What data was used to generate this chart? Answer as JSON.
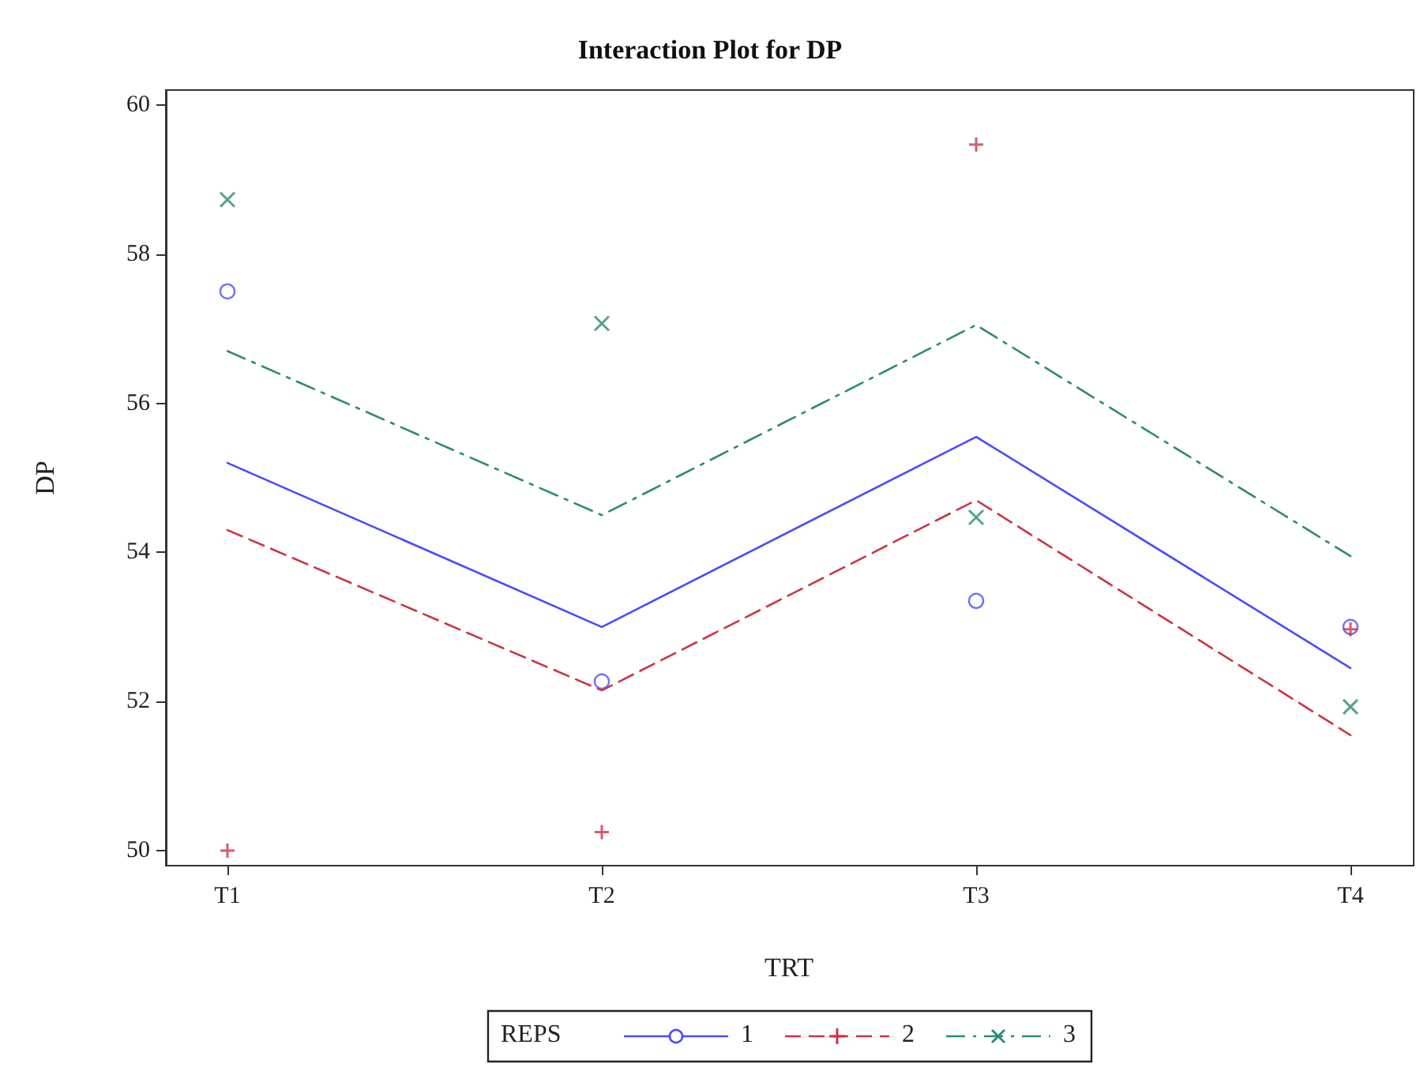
{
  "chart_data": {
    "type": "scatter",
    "title": "Interaction Plot for DP",
    "xlabel": "TRT",
    "ylabel": "DP",
    "legend_title": "REPS",
    "legend": "bottom",
    "grid": false,
    "categories": [
      "T1",
      "T2",
      "T3",
      "T4"
    ],
    "ylim": [
      49.8,
      60.2
    ],
    "yticks": [
      50,
      52,
      54,
      56,
      58,
      60
    ],
    "series": [
      {
        "name": "1",
        "color": "#4b4bff",
        "marker": "circle",
        "line_style": "solid",
        "values": [
          57.5,
          52.27,
          53.35,
          53.0
        ]
      },
      {
        "name": "2",
        "color": "#cc3344",
        "marker": "cross",
        "line_style": "dashed",
        "values": [
          50.0,
          50.25,
          59.47,
          52.97
        ]
      },
      {
        "name": "3",
        "color": "#2a8a78",
        "marker": "x",
        "line_style": "dashdot",
        "values": [
          58.73,
          57.07,
          54.47,
          51.93
        ]
      },
      {
        "type": "line",
        "color": "#4b4bff",
        "line_style": "solid",
        "marker": "none",
        "values": [
          55.2,
          53.0,
          55.55,
          52.45
        ]
      },
      {
        "type": "line",
        "color": "#cc3344",
        "line_style": "dashed",
        "marker": "none",
        "values": [
          54.3,
          52.15,
          54.7,
          51.55
        ]
      },
      {
        "type": "line",
        "color": "#2a8a78",
        "line_style": "dashdot",
        "marker": "none",
        "values": [
          56.7,
          54.5,
          57.05,
          53.95
        ]
      }
    ]
  }
}
